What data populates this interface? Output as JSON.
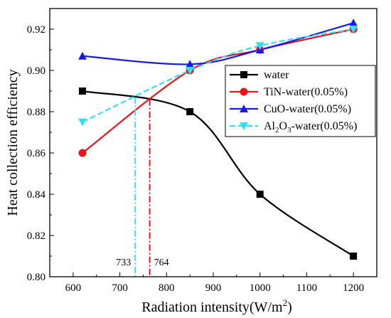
{
  "chart_data": {
    "type": "line",
    "title": "",
    "xlabel": "Radiation intensity(W/m",
    "xlabel_superscript": "2",
    "xlabel_suffix": ")",
    "ylabel": "Heat collection efficiency",
    "xlim": [
      550,
      1250
    ],
    "ylim": [
      0.8,
      0.93
    ],
    "xticks": [
      600,
      700,
      800,
      900,
      1000,
      1100,
      1200
    ],
    "yticks": [
      0.8,
      0.82,
      0.84,
      0.86,
      0.88,
      0.9,
      0.92
    ],
    "grid": false,
    "legend_position": "center-right",
    "series": [
      {
        "name": "water",
        "color": "#000000",
        "marker": "square",
        "dashed": false,
        "x": [
          620,
          850,
          1000,
          1200
        ],
        "values": [
          0.89,
          0.88,
          0.84,
          0.81
        ]
      },
      {
        "name": "TiN-water(0.05%)",
        "color": "#e8141b",
        "marker": "circle",
        "dashed": false,
        "x": [
          620,
          850,
          1000,
          1200
        ],
        "values": [
          0.86,
          0.9,
          0.91,
          0.92
        ]
      },
      {
        "name": "CuO-water(0.05%)",
        "color": "#1a1ae6",
        "marker": "triangle-up",
        "dashed": false,
        "x": [
          620,
          850,
          1000,
          1200
        ],
        "values": [
          0.907,
          0.903,
          0.91,
          0.923
        ]
      },
      {
        "name": "Al2O3-water(0.05%)",
        "legend_parts": [
          "Al",
          "2",
          "O",
          "3",
          "-water(0.05%)"
        ],
        "color": "#33e0ee",
        "marker": "triangle-down",
        "dashed": true,
        "x": [
          620,
          850,
          1000,
          1200
        ],
        "values": [
          0.875,
          0.9,
          0.912,
          0.92
        ]
      }
    ],
    "annotations": [
      {
        "label": "733",
        "x": 733,
        "y_top": 0.887,
        "color": "#33e0ee"
      },
      {
        "label": "764",
        "x": 764,
        "y_top": 0.886,
        "color": "#e8141b"
      }
    ]
  }
}
